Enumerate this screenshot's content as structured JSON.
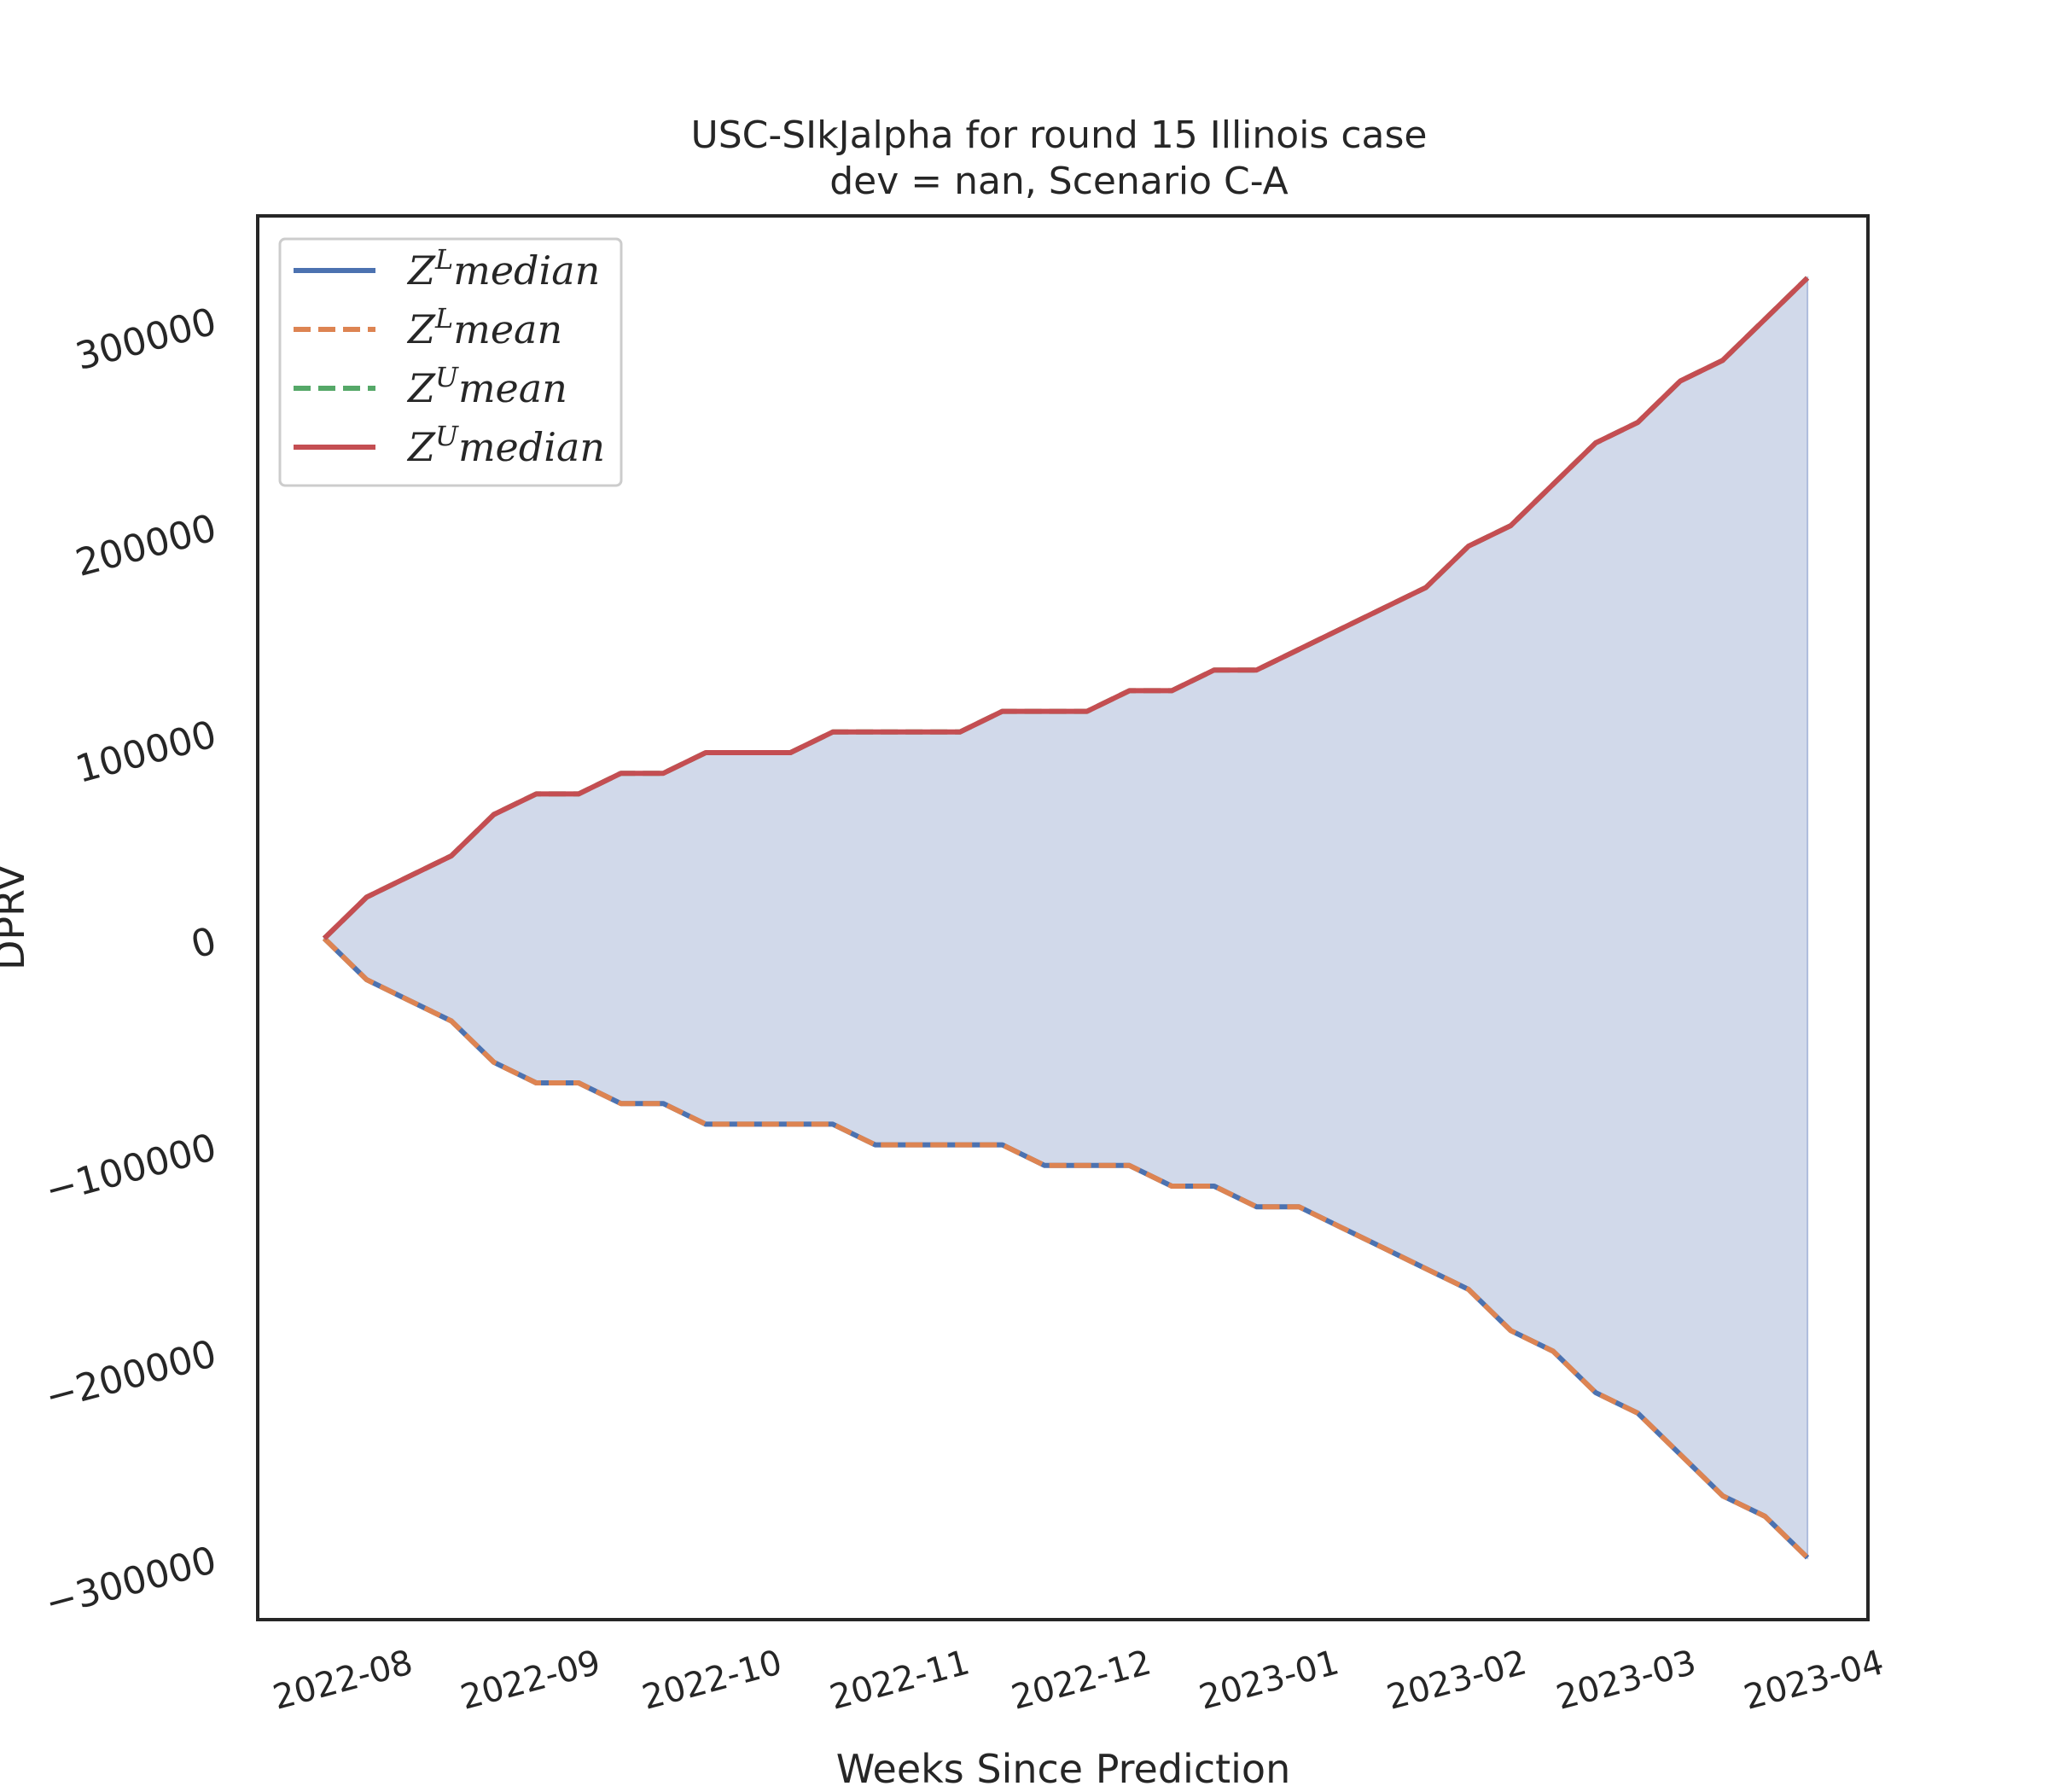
{
  "chart_data": {
    "type": "line",
    "title": "USC-SIkJalpha for round 15 Illinois case",
    "subtitle": "dev = nan, Scenario C-A",
    "xlabel": "Weeks Since Prediction",
    "ylabel": "DPRV",
    "ylim": [
      -330000,
      350000
    ],
    "xlim": [
      "2022-07-12",
      "2023-04-04"
    ],
    "grid": false,
    "legend_placement": "upper-left",
    "colors": {
      "zl_median": "#4c72b0",
      "zl_mean": "#dd8452",
      "zu_mean": "#55a868",
      "zu_median": "#c44e52",
      "fill": "#d1d9ea"
    },
    "x_ticks": [
      "2022-08",
      "2022-09",
      "2022-10",
      "2022-11",
      "2022-12",
      "2023-01",
      "2023-02",
      "2023-03",
      "2023-04"
    ],
    "y_ticks": [
      {
        "value": 300000,
        "label": "300000"
      },
      {
        "value": 200000,
        "label": "200000"
      },
      {
        "value": 100000,
        "label": "100000"
      },
      {
        "value": 0,
        "label": "0"
      },
      {
        "value": -100000,
        "label": "−100000"
      },
      {
        "value": -200000,
        "label": "−200000"
      },
      {
        "value": -300000,
        "label": "−300000"
      }
    ],
    "x": [
      "2022-07-23",
      "2022-07-30",
      "2022-08-06",
      "2022-08-13",
      "2022-08-20",
      "2022-08-27",
      "2022-09-03",
      "2022-09-10",
      "2022-09-17",
      "2022-09-24",
      "2022-10-01",
      "2022-10-08",
      "2022-10-15",
      "2022-10-22",
      "2022-10-29",
      "2022-11-05",
      "2022-11-12",
      "2022-11-19",
      "2022-11-26",
      "2022-12-03",
      "2022-12-10",
      "2022-12-17",
      "2022-12-24",
      "2022-12-31",
      "2023-01-07",
      "2023-01-14",
      "2023-01-21",
      "2023-01-28",
      "2023-02-04",
      "2023-02-11",
      "2023-02-18",
      "2023-02-25",
      "2023-03-04",
      "2023-03-11",
      "2023-03-18",
      "2023-03-25"
    ],
    "series": [
      {
        "name": "$Z^L median$",
        "legend_base": "Z",
        "legend_sup": "L",
        "legend_rest": "median",
        "style": "solid",
        "values": [
          0,
          -20000,
          -30000,
          -40000,
          -60000,
          -70000,
          -70000,
          -80000,
          -80000,
          -90000,
          -90000,
          -90000,
          -90000,
          -100000,
          -100000,
          -100000,
          -100000,
          -110000,
          -110000,
          -110000,
          -120000,
          -120000,
          -130000,
          -130000,
          -140000,
          -150000,
          -160000,
          -170000,
          -190000,
          -200000,
          -220000,
          -230000,
          -250000,
          -270000,
          -280000,
          -300000
        ]
      },
      {
        "name": "$Z^L mean$",
        "legend_base": "Z",
        "legend_sup": "L",
        "legend_rest": "mean",
        "style": "dashed",
        "values": [
          0,
          -20000,
          -30000,
          -40000,
          -60000,
          -70000,
          -70000,
          -80000,
          -80000,
          -90000,
          -90000,
          -90000,
          -90000,
          -100000,
          -100000,
          -100000,
          -100000,
          -110000,
          -110000,
          -110000,
          -120000,
          -120000,
          -130000,
          -130000,
          -140000,
          -150000,
          -160000,
          -170000,
          -190000,
          -200000,
          -220000,
          -230000,
          -250000,
          -270000,
          -280000,
          -300000
        ]
      },
      {
        "name": "$Z^U mean$",
        "legend_base": "Z",
        "legend_sup": "U",
        "legend_rest": "mean",
        "style": "dashed",
        "values": [
          0,
          20000,
          30000,
          40000,
          60000,
          70000,
          70000,
          80000,
          80000,
          90000,
          90000,
          90000,
          100000,
          100000,
          100000,
          100000,
          110000,
          110000,
          110000,
          120000,
          120000,
          130000,
          130000,
          140000,
          150000,
          160000,
          170000,
          190000,
          200000,
          220000,
          240000,
          250000,
          270000,
          280000,
          300000,
          320000
        ]
      },
      {
        "name": "$Z^U median$",
        "legend_base": "Z",
        "legend_sup": "U",
        "legend_rest": "median",
        "style": "solid",
        "values": [
          0,
          20000,
          30000,
          40000,
          60000,
          70000,
          70000,
          80000,
          80000,
          90000,
          90000,
          90000,
          100000,
          100000,
          100000,
          100000,
          110000,
          110000,
          110000,
          120000,
          120000,
          130000,
          130000,
          140000,
          150000,
          160000,
          170000,
          190000,
          200000,
          220000,
          240000,
          250000,
          270000,
          280000,
          300000,
          320000
        ]
      }
    ]
  }
}
